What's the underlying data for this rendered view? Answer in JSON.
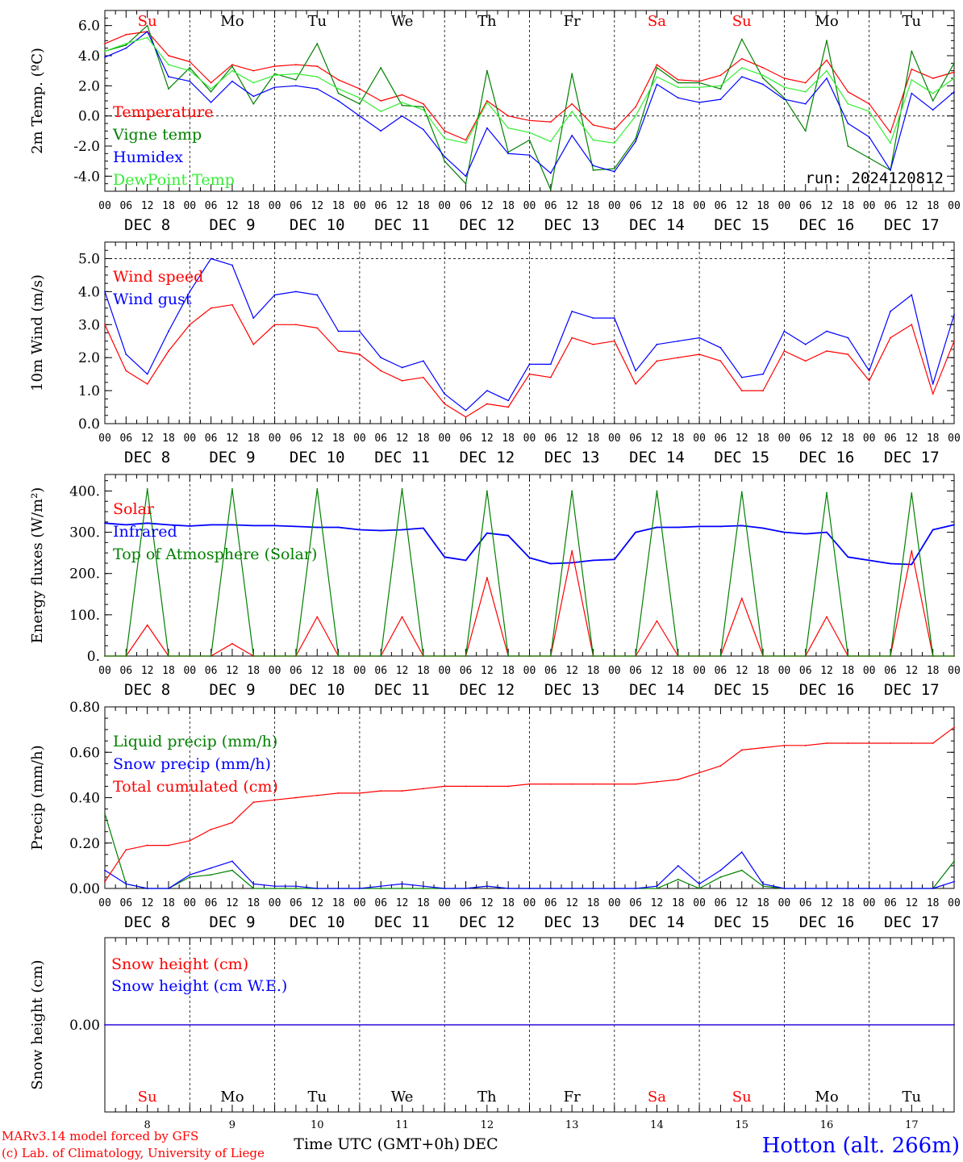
{
  "footer": {
    "model_line": "MARv3.14 model forced by GFS",
    "credit_line": "(c) Lab. of Climatology, University of Liege",
    "station": "Hotton (alt. 266m)",
    "xlabel_a": "Time UTC (GMT+0h)",
    "xlabel_b": "DEC"
  },
  "colors": {
    "red": "#ff0000",
    "green": "#008000",
    "blue": "#0000ff",
    "lime": "#33ee33",
    "black": "#000000"
  },
  "days": [
    {
      "abbr": "Su",
      "weekend": true,
      "date": "DEC  8",
      "num": "8"
    },
    {
      "abbr": "Mo",
      "weekend": false,
      "date": "DEC  9",
      "num": "9"
    },
    {
      "abbr": "Tu",
      "weekend": false,
      "date": "DEC 10",
      "num": "10"
    },
    {
      "abbr": "We",
      "weekend": false,
      "date": "DEC 11",
      "num": "11"
    },
    {
      "abbr": "Th",
      "weekend": false,
      "date": "DEC 12",
      "num": "12"
    },
    {
      "abbr": "Fr",
      "weekend": false,
      "date": "DEC 13",
      "num": "13"
    },
    {
      "abbr": "Sa",
      "weekend": true,
      "date": "DEC 14",
      "num": "14"
    },
    {
      "abbr": "Su",
      "weekend": true,
      "date": "DEC 15",
      "num": "15"
    },
    {
      "abbr": "Mo",
      "weekend": false,
      "date": "DEC 16",
      "num": "16"
    },
    {
      "abbr": "Tu",
      "weekend": false,
      "date": "DEC 17",
      "num": "17"
    }
  ],
  "hour_ticks": [
    "00",
    "06",
    "12",
    "18"
  ],
  "chart_data": [
    {
      "id": "temp",
      "type": "line",
      "ylabel": "2m Temp. (ºC)",
      "ylim": [
        -5,
        7
      ],
      "yticks": [
        -4,
        -2,
        0,
        2,
        4,
        6
      ],
      "ytick_labels": [
        "-4.0",
        "-2.0",
        "0.0",
        "2.0",
        "4.0",
        "6.0"
      ],
      "ref_lines": [
        0
      ],
      "run_label": "run: 2024120812",
      "x": [
        0,
        6,
        12,
        18,
        24,
        30,
        36,
        42,
        48,
        54,
        60,
        66,
        72,
        78,
        84,
        90,
        96,
        102,
        108,
        114,
        120,
        126,
        132,
        138,
        144,
        150,
        156,
        162,
        168,
        174,
        180,
        186,
        192,
        198,
        204,
        210,
        216,
        222,
        228,
        234,
        240
      ],
      "series": [
        {
          "name": "Temperature",
          "color": "#ff0000",
          "values": [
            4.8,
            5.4,
            5.6,
            4.0,
            3.6,
            2.2,
            3.4,
            3.0,
            3.3,
            3.4,
            3.3,
            2.4,
            1.8,
            1.0,
            1.4,
            0.8,
            -1.0,
            -1.6,
            1.0,
            0.0,
            -0.3,
            -0.4,
            0.8,
            -0.6,
            -0.9,
            0.6,
            3.4,
            2.4,
            2.3,
            2.7,
            3.8,
            3.2,
            2.5,
            2.2,
            3.7,
            1.6,
            0.8,
            -1.1,
            3.1,
            2.5,
            2.9
          ]
        },
        {
          "name": "Vigne temp",
          "color": "#008000",
          "values": [
            4.3,
            4.7,
            6.0,
            1.8,
            3.2,
            1.6,
            3.3,
            0.8,
            2.8,
            2.4,
            4.8,
            1.5,
            0.8,
            3.2,
            0.7,
            0.6,
            -3.0,
            -4.5,
            3.0,
            -2.4,
            -1.6,
            -4.9,
            2.8,
            -3.6,
            -3.5,
            -1.5,
            3.2,
            2.2,
            2.2,
            1.8,
            5.1,
            2.5,
            1.2,
            -1.0,
            5.0,
            -2.0,
            -2.8,
            -3.6,
            4.3,
            1.0,
            3.5
          ]
        },
        {
          "name": "Humidex",
          "color": "#0000ff",
          "values": [
            3.9,
            4.5,
            5.6,
            2.6,
            2.3,
            0.9,
            2.3,
            1.3,
            1.9,
            2.0,
            1.8,
            1.0,
            0.0,
            -1.0,
            0.0,
            -0.9,
            -2.7,
            -4.0,
            -0.8,
            -2.5,
            -2.6,
            -3.8,
            -1.3,
            -3.3,
            -3.7,
            -1.7,
            2.1,
            1.2,
            0.9,
            1.1,
            2.6,
            2.1,
            1.1,
            0.8,
            2.5,
            -0.5,
            -1.4,
            -3.6,
            1.5,
            0.4,
            1.6
          ]
        },
        {
          "name": "DewPoint Temp",
          "color": "#33ee33",
          "values": [
            4.3,
            4.8,
            5.2,
            3.4,
            3.0,
            1.8,
            3.0,
            2.2,
            2.7,
            2.8,
            2.6,
            1.8,
            1.2,
            0.3,
            0.9,
            0.4,
            -1.5,
            -1.8,
            0.9,
            -0.8,
            -1.1,
            -1.7,
            0.3,
            -1.6,
            -1.8,
            0.0,
            2.6,
            1.9,
            1.9,
            2.0,
            3.2,
            2.7,
            1.9,
            1.6,
            3.0,
            0.8,
            0.3,
            -1.8,
            2.4,
            1.5,
            2.5
          ]
        }
      ]
    },
    {
      "id": "wind",
      "type": "line",
      "ylabel": "10m Wind (m/s)",
      "ylim": [
        0,
        5.5
      ],
      "yticks": [
        0,
        1,
        2,
        3,
        4,
        5
      ],
      "ytick_labels": [
        "0.0",
        "1.0",
        "2.0",
        "3.0",
        "4.0",
        "5.0"
      ],
      "ref_lines": [
        5
      ],
      "x": [
        0,
        6,
        12,
        18,
        24,
        30,
        36,
        42,
        48,
        54,
        60,
        66,
        72,
        78,
        84,
        90,
        96,
        102,
        108,
        114,
        120,
        126,
        132,
        138,
        144,
        150,
        156,
        162,
        168,
        174,
        180,
        186,
        192,
        198,
        204,
        210,
        216,
        222,
        228,
        234,
        240
      ],
      "series": [
        {
          "name": "Wind speed",
          "color": "#ff0000",
          "values": [
            3.0,
            1.6,
            1.2,
            2.2,
            3.0,
            3.5,
            3.6,
            2.4,
            3.0,
            3.0,
            2.9,
            2.2,
            2.1,
            1.6,
            1.3,
            1.4,
            0.6,
            0.2,
            0.6,
            0.5,
            1.5,
            1.4,
            2.6,
            2.4,
            2.5,
            1.2,
            1.9,
            2.0,
            2.1,
            1.9,
            1.0,
            1.0,
            2.2,
            1.9,
            2.2,
            2.1,
            1.3,
            2.6,
            3.0,
            0.9,
            2.5
          ]
        },
        {
          "name": "Wind gust",
          "color": "#0000ff",
          "values": [
            4.0,
            2.1,
            1.5,
            2.8,
            4.0,
            5.0,
            4.8,
            3.2,
            3.9,
            4.0,
            3.9,
            2.8,
            2.8,
            2.0,
            1.7,
            1.9,
            0.9,
            0.4,
            1.0,
            0.7,
            1.8,
            1.8,
            3.4,
            3.2,
            3.2,
            1.6,
            2.4,
            2.5,
            2.6,
            2.3,
            1.4,
            1.5,
            2.8,
            2.4,
            2.8,
            2.6,
            1.6,
            3.4,
            3.9,
            1.2,
            3.3
          ]
        }
      ]
    },
    {
      "id": "energy",
      "type": "line",
      "ylabel": "Energy fluxes (W/m²)",
      "ylim": [
        0,
        440
      ],
      "yticks": [
        0,
        100,
        200,
        300,
        400
      ],
      "ytick_labels": [
        "0.",
        "100.",
        "200.",
        "300.",
        "400."
      ],
      "ref_lines": [],
      "x": [
        0,
        6,
        12,
        18,
        24,
        30,
        36,
        42,
        48,
        54,
        60,
        66,
        72,
        78,
        84,
        90,
        96,
        102,
        108,
        114,
        120,
        126,
        132,
        138,
        144,
        150,
        156,
        162,
        168,
        174,
        180,
        186,
        192,
        198,
        204,
        210,
        216,
        222,
        228,
        234,
        240
      ],
      "series": [
        {
          "name": "Infrared",
          "color": "#0000ff",
          "values": [
            322,
            318,
            322,
            318,
            315,
            318,
            318,
            316,
            316,
            314,
            312,
            312,
            306,
            304,
            306,
            310,
            240,
            232,
            298,
            292,
            238,
            224,
            226,
            232,
            234,
            300,
            312,
            312,
            314,
            314,
            316,
            310,
            300,
            296,
            300,
            240,
            232,
            224,
            222,
            306,
            318
          ]
        },
        {
          "name": "Solar",
          "color": "#ff0000",
          "values": [
            0,
            0,
            75,
            0,
            0,
            0,
            30,
            0,
            0,
            0,
            95,
            0,
            0,
            0,
            95,
            0,
            0,
            0,
            190,
            0,
            0,
            0,
            255,
            0,
            0,
            0,
            85,
            0,
            0,
            0,
            140,
            0,
            0,
            0,
            95,
            0,
            0,
            0,
            255,
            0,
            0
          ]
        },
        {
          "name": "Top of Atmosphere (Solar)",
          "color": "#008000",
          "values": [
            0,
            0,
            405,
            0,
            0,
            0,
            405,
            0,
            0,
            0,
            405,
            0,
            0,
            0,
            405,
            0,
            0,
            0,
            400,
            0,
            0,
            0,
            400,
            0,
            0,
            0,
            400,
            0,
            0,
            0,
            398,
            0,
            0,
            0,
            396,
            0,
            0,
            0,
            395,
            0,
            0
          ]
        }
      ]
    },
    {
      "id": "precip",
      "type": "line",
      "ylabel": "Precip (mm/h)",
      "ylim": [
        0,
        0.8
      ],
      "yticks": [
        0,
        0.2,
        0.4,
        0.6,
        0.8
      ],
      "ytick_labels": [
        "0.00",
        "0.20",
        "0.40",
        "0.60",
        "0.80"
      ],
      "ref_lines": [],
      "x": [
        0,
        6,
        12,
        18,
        24,
        30,
        36,
        42,
        48,
        54,
        60,
        66,
        72,
        78,
        84,
        90,
        96,
        102,
        108,
        114,
        120,
        126,
        132,
        138,
        144,
        150,
        156,
        162,
        168,
        174,
        180,
        186,
        192,
        198,
        204,
        210,
        216,
        222,
        228,
        234,
        240
      ],
      "series": [
        {
          "name": "Liquid precip (mm/h)",
          "color": "#008000",
          "values": [
            0.33,
            0.02,
            0.0,
            0.0,
            0.05,
            0.06,
            0.08,
            0.0,
            0.0,
            0.0,
            0.0,
            0.0,
            0.0,
            0.0,
            0.0,
            0.0,
            0.0,
            0.0,
            0.01,
            0.0,
            0.0,
            0.0,
            0.0,
            0.0,
            0.0,
            0.0,
            0.0,
            0.04,
            0.0,
            0.05,
            0.08,
            0.01,
            0.0,
            0.0,
            0.0,
            0.0,
            0.0,
            0.0,
            0.0,
            0.0,
            0.12
          ]
        },
        {
          "name": "Snow precip (mm/h)",
          "color": "#0000ff",
          "values": [
            0.08,
            0.02,
            0.0,
            0.0,
            0.06,
            0.09,
            0.12,
            0.02,
            0.01,
            0.01,
            0.0,
            0.0,
            0.0,
            0.01,
            0.02,
            0.01,
            0.0,
            0.0,
            0.01,
            0.0,
            0.0,
            0.0,
            0.0,
            0.0,
            0.0,
            0.0,
            0.01,
            0.1,
            0.02,
            0.08,
            0.16,
            0.02,
            0.0,
            0.0,
            0.0,
            0.0,
            0.0,
            0.0,
            0.0,
            0.0,
            0.03
          ]
        },
        {
          "name": "Total cumulated (cm)",
          "color": "#ff0000",
          "values": [
            0.03,
            0.17,
            0.19,
            0.19,
            0.21,
            0.26,
            0.29,
            0.38,
            0.39,
            0.4,
            0.41,
            0.42,
            0.42,
            0.43,
            0.43,
            0.44,
            0.45,
            0.45,
            0.45,
            0.45,
            0.46,
            0.46,
            0.46,
            0.46,
            0.46,
            0.46,
            0.47,
            0.48,
            0.51,
            0.54,
            0.61,
            0.62,
            0.63,
            0.63,
            0.64,
            0.64,
            0.64,
            0.64,
            0.64,
            0.64,
            0.71
          ]
        }
      ]
    },
    {
      "id": "snow",
      "type": "line",
      "ylabel": "Snow height (cm)",
      "ylim": [
        -1,
        1
      ],
      "yticks": [
        0
      ],
      "ytick_labels": [
        "0.00"
      ],
      "ref_lines": [],
      "x": [
        0,
        240
      ],
      "series": [
        {
          "name": "Snow height (cm)",
          "color": "#ff0000",
          "values": [
            0,
            0
          ]
        },
        {
          "name": "Snow height (cm W.E.)",
          "color": "#0000ff",
          "values": [
            0,
            0
          ]
        }
      ]
    }
  ]
}
